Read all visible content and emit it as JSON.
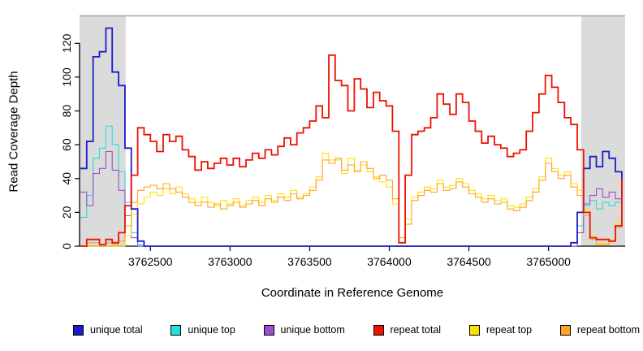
{
  "figure": {
    "xlabel": "Coordinate in Reference Genome",
    "ylabel": "Read Coverage Depth",
    "background": "#FFFFFF"
  },
  "chart_data": {
    "type": "line",
    "title": "",
    "xlabel": "Coordinate in Reference Genome",
    "ylabel": "Read Coverage Depth",
    "xlim": [
      3762055,
      3765481
    ],
    "ylim": [
      0,
      136
    ],
    "x_ticks": [
      3762500,
      3763000,
      3763500,
      3764000,
      3764500,
      3765000
    ],
    "y_ticks": [
      0,
      20,
      40,
      60,
      80,
      100,
      120
    ],
    "grid": false,
    "legend_position": "bottom",
    "band_color": "#DBDBDB",
    "top_border_color": "#A3A3A3",
    "shaded_regions": [
      {
        "x0": 3762055,
        "x1": 3762345
      },
      {
        "x0": 3765205,
        "x1": 3765481
      }
    ],
    "x_start": 3762060,
    "x_step": 40,
    "series": [
      {
        "name": "unique total",
        "color": "#1C1CCE",
        "lw": 2,
        "values": [
          46,
          62,
          112,
          115,
          129,
          103,
          95,
          58,
          22,
          3,
          0,
          0,
          0,
          0,
          0,
          0,
          0,
          0,
          0,
          0,
          0,
          0,
          0,
          0,
          0,
          0,
          0,
          0,
          0,
          0,
          0,
          0,
          0,
          0,
          0,
          0,
          0,
          0,
          0,
          0,
          0,
          0,
          0,
          0,
          0,
          0,
          0,
          0,
          0,
          0,
          0,
          0,
          0,
          0,
          0,
          0,
          0,
          0,
          0,
          0,
          0,
          0,
          0,
          0,
          0,
          0,
          0,
          0,
          0,
          0,
          0,
          0,
          0,
          0,
          0,
          0,
          0,
          2,
          20,
          46,
          53,
          47,
          56,
          52,
          44,
          29
        ]
      },
      {
        "name": "unique top",
        "color": "#21E0E0",
        "lw": 1,
        "values": [
          17,
          30,
          52,
          58,
          71,
          60,
          44,
          26,
          8,
          1,
          0,
          0,
          0,
          0,
          0,
          0,
          0,
          0,
          0,
          0,
          0,
          0,
          0,
          0,
          0,
          0,
          0,
          0,
          0,
          0,
          0,
          0,
          0,
          0,
          0,
          0,
          0,
          0,
          0,
          0,
          0,
          0,
          0,
          0,
          0,
          0,
          0,
          0,
          0,
          0,
          0,
          0,
          0,
          0,
          0,
          0,
          0,
          0,
          0,
          0,
          0,
          0,
          0,
          0,
          0,
          0,
          0,
          0,
          0,
          0,
          0,
          0,
          0,
          0,
          0,
          0,
          0,
          0,
          12,
          24,
          27,
          22,
          26,
          24,
          26,
          27
        ]
      },
      {
        "name": "unique bottom",
        "color": "#9B4FD0",
        "lw": 1,
        "values": [
          32,
          24,
          43,
          46,
          56,
          45,
          33,
          18,
          5,
          0,
          0,
          0,
          0,
          0,
          0,
          0,
          0,
          0,
          0,
          0,
          0,
          0,
          0,
          0,
          0,
          0,
          0,
          0,
          0,
          0,
          0,
          0,
          0,
          0,
          0,
          0,
          0,
          0,
          0,
          0,
          0,
          0,
          0,
          0,
          0,
          0,
          0,
          0,
          0,
          0,
          0,
          0,
          0,
          0,
          0,
          0,
          0,
          0,
          0,
          0,
          0,
          0,
          0,
          0,
          0,
          0,
          0,
          0,
          0,
          0,
          0,
          0,
          0,
          0,
          0,
          0,
          0,
          0,
          8,
          25,
          30,
          34,
          29,
          32,
          28,
          33
        ]
      },
      {
        "name": "repeat total",
        "color": "#EE1100",
        "lw": 2,
        "values": [
          0,
          4,
          4,
          1,
          4,
          2,
          8,
          24,
          42,
          70,
          66,
          62,
          56,
          66,
          62,
          65,
          57,
          53,
          45,
          50,
          46,
          49,
          52,
          48,
          52,
          47,
          51,
          55,
          52,
          57,
          54,
          59,
          64,
          60,
          67,
          70,
          74,
          83,
          76,
          113,
          98,
          95,
          80,
          99,
          93,
          82,
          91,
          86,
          83,
          68,
          2,
          42,
          66,
          68,
          70,
          76,
          90,
          84,
          78,
          90,
          85,
          74,
          68,
          61,
          65,
          60,
          58,
          53,
          55,
          57,
          68,
          79,
          90,
          101,
          94,
          85,
          76,
          72,
          57,
          20,
          5,
          4,
          4,
          3,
          12,
          40
        ]
      },
      {
        "name": "repeat top",
        "color": "#FFE100",
        "lw": 1,
        "values": [
          0,
          0,
          0,
          0,
          0,
          0,
          0,
          6,
          19,
          25,
          29,
          32,
          30,
          34,
          31,
          35,
          31,
          28,
          26,
          29,
          26,
          24,
          27,
          25,
          28,
          24,
          27,
          29,
          26,
          30,
          27,
          31,
          29,
          33,
          29,
          31,
          35,
          41,
          55,
          51,
          51,
          43,
          52,
          45,
          48,
          44,
          41,
          38,
          35,
          25,
          5,
          16,
          29,
          32,
          35,
          34,
          39,
          35,
          36,
          40,
          37,
          33,
          31,
          28,
          30,
          27,
          28,
          24,
          23,
          25,
          29,
          34,
          41,
          52,
          46,
          42,
          44,
          37,
          33,
          22,
          6,
          2,
          2,
          4,
          14,
          30
        ]
      },
      {
        "name": "repeat bottom",
        "color": "#FFA326",
        "lw": 1,
        "values": [
          0,
          2,
          2,
          0,
          2,
          1,
          3,
          12,
          26,
          33,
          35,
          36,
          34,
          37,
          34,
          32,
          29,
          26,
          24,
          26,
          23,
          25,
          22,
          24,
          26,
          23,
          25,
          27,
          24,
          28,
          26,
          29,
          27,
          31,
          28,
          30,
          33,
          39,
          51,
          49,
          52,
          45,
          48,
          44,
          50,
          46,
          40,
          42,
          39,
          28,
          5,
          13,
          27,
          30,
          33,
          32,
          37,
          33,
          34,
          38,
          35,
          31,
          29,
          26,
          28,
          25,
          26,
          22,
          21,
          23,
          27,
          32,
          39,
          49,
          44,
          40,
          42,
          35,
          30,
          18,
          4,
          1,
          1,
          3,
          11,
          26
        ]
      }
    ]
  }
}
